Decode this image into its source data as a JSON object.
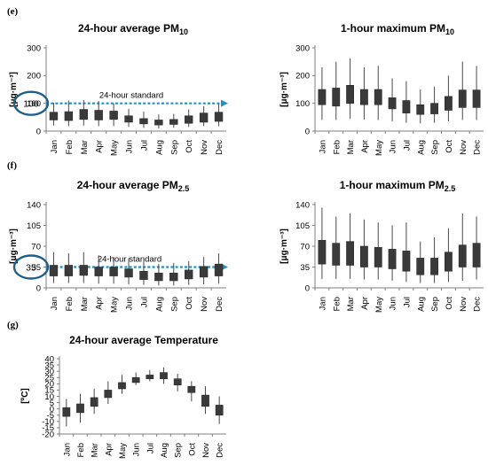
{
  "colors": {
    "box": "#3a3a3a",
    "whisker": "#4a4a4a",
    "axis": "#7f7f7f",
    "standard": "#1e90c8",
    "ellipse": "#1f5f8c"
  },
  "panels": {
    "e": "(e)",
    "f": "(f)",
    "g": "(g)"
  },
  "chart_data": [
    {
      "type": "boxplot",
      "panel": "e",
      "title": "24-hour average PM",
      "title_sub": "10",
      "ylabel": "[μg·m⁻³]",
      "ylim": [
        0,
        300
      ],
      "yticks": [
        0,
        100,
        200,
        300
      ],
      "categories": [
        "Jan",
        "Feb",
        "Mar",
        "Apr",
        "May",
        "Jun",
        "Jul",
        "Aug",
        "Sep",
        "Oct",
        "Nov",
        "Dec"
      ],
      "boxes": [
        {
          "low": 20,
          "q1": 40,
          "q3": 68,
          "high": 102
        },
        {
          "low": 18,
          "q1": 38,
          "q3": 70,
          "high": 110
        },
        {
          "low": 20,
          "q1": 42,
          "q3": 78,
          "high": 112
        },
        {
          "low": 18,
          "q1": 40,
          "q3": 75,
          "high": 108
        },
        {
          "low": 18,
          "q1": 42,
          "q3": 72,
          "high": 100
        },
        {
          "low": 15,
          "q1": 32,
          "q3": 55,
          "high": 80
        },
        {
          "low": 12,
          "q1": 26,
          "q3": 45,
          "high": 70
        },
        {
          "low": 10,
          "q1": 22,
          "q3": 40,
          "high": 60
        },
        {
          "low": 12,
          "q1": 24,
          "q3": 42,
          "high": 62
        },
        {
          "low": 15,
          "q1": 28,
          "q3": 55,
          "high": 78
        },
        {
          "low": 18,
          "q1": 32,
          "q3": 65,
          "high": 90
        },
        {
          "low": 18,
          "q1": 35,
          "q3": 68,
          "high": 98
        }
      ],
      "standard": {
        "value": 100,
        "label": "24-hour standard",
        "highlight": "100"
      }
    },
    {
      "type": "boxplot",
      "panel": "e",
      "title": "1-hour maximum PM",
      "title_sub": "10",
      "ylabel": "[μg·m⁻³]",
      "ylim": [
        0,
        300
      ],
      "yticks": [
        0,
        100,
        200,
        300
      ],
      "categories": [
        "Jan",
        "Feb",
        "Mar",
        "Apr",
        "May",
        "Jun",
        "Jul",
        "Aug",
        "Sep",
        "Oct",
        "Nov",
        "Dec"
      ],
      "boxes": [
        {
          "low": 40,
          "q1": 95,
          "q3": 150,
          "high": 230
        },
        {
          "low": 40,
          "q1": 90,
          "q3": 155,
          "high": 250
        },
        {
          "low": 45,
          "q1": 100,
          "q3": 165,
          "high": 262
        },
        {
          "low": 42,
          "q1": 95,
          "q3": 150,
          "high": 230
        },
        {
          "low": 40,
          "q1": 95,
          "q3": 150,
          "high": 235
        },
        {
          "low": 35,
          "q1": 80,
          "q3": 120,
          "high": 190
        },
        {
          "low": 30,
          "q1": 65,
          "q3": 110,
          "high": 180
        },
        {
          "low": 28,
          "q1": 60,
          "q3": 95,
          "high": 150
        },
        {
          "low": 30,
          "q1": 62,
          "q3": 100,
          "high": 160
        },
        {
          "low": 35,
          "q1": 75,
          "q3": 125,
          "high": 200
        },
        {
          "low": 40,
          "q1": 85,
          "q3": 148,
          "high": 250
        },
        {
          "low": 40,
          "q1": 85,
          "q3": 148,
          "high": 235
        }
      ]
    },
    {
      "type": "boxplot",
      "panel": "f",
      "title": "24-hour average PM",
      "title_sub": "2.5",
      "ylabel": "[μg·m⁻³]",
      "ylim": [
        0,
        140
      ],
      "yticks": [
        0,
        35,
        70,
        105,
        140
      ],
      "categories": [
        "Jan",
        "Feb",
        "Mar",
        "Apr",
        "May",
        "Jun",
        "Jul",
        "Aug",
        "Sep",
        "Oct",
        "Nov",
        "Dec"
      ],
      "boxes": [
        {
          "low": 8,
          "q1": 20,
          "q3": 38,
          "high": 60
        },
        {
          "low": 8,
          "q1": 20,
          "q3": 38,
          "high": 58
        },
        {
          "low": 8,
          "q1": 21,
          "q3": 38,
          "high": 60
        },
        {
          "low": 7,
          "q1": 20,
          "q3": 35,
          "high": 55
        },
        {
          "low": 7,
          "q1": 20,
          "q3": 35,
          "high": 52
        },
        {
          "low": 6,
          "q1": 18,
          "q3": 32,
          "high": 50
        },
        {
          "low": 5,
          "q1": 14,
          "q3": 28,
          "high": 45
        },
        {
          "low": 4,
          "q1": 12,
          "q3": 25,
          "high": 40
        },
        {
          "low": 4,
          "q1": 12,
          "q3": 25,
          "high": 42
        },
        {
          "low": 5,
          "q1": 15,
          "q3": 30,
          "high": 45
        },
        {
          "low": 6,
          "q1": 18,
          "q3": 36,
          "high": 52
        },
        {
          "low": 7,
          "q1": 20,
          "q3": 40,
          "high": 58
        }
      ],
      "standard": {
        "value": 35,
        "label": "24-hour standard",
        "highlight": "35"
      }
    },
    {
      "type": "boxplot",
      "panel": "f",
      "title": "1-hour maximum PM",
      "title_sub": "2.5",
      "ylabel": "[μg·m⁻³]",
      "ylim": [
        0,
        140
      ],
      "yticks": [
        0,
        35,
        70,
        105,
        140
      ],
      "categories": [
        "Jan",
        "Feb",
        "Mar",
        "Apr",
        "May",
        "Jun",
        "Jul",
        "Aug",
        "Sep",
        "Oct",
        "Nov",
        "Dec"
      ],
      "boxes": [
        {
          "low": 15,
          "q1": 40,
          "q3": 80,
          "high": 135
        },
        {
          "low": 15,
          "q1": 38,
          "q3": 75,
          "high": 120
        },
        {
          "low": 15,
          "q1": 38,
          "q3": 78,
          "high": 125
        },
        {
          "low": 14,
          "q1": 35,
          "q3": 70,
          "high": 115
        },
        {
          "low": 14,
          "q1": 35,
          "q3": 68,
          "high": 110
        },
        {
          "low": 12,
          "q1": 32,
          "q3": 65,
          "high": 105
        },
        {
          "low": 10,
          "q1": 28,
          "q3": 62,
          "high": 110
        },
        {
          "low": 8,
          "q1": 22,
          "q3": 50,
          "high": 78
        },
        {
          "low": 8,
          "q1": 22,
          "q3": 50,
          "high": 85
        },
        {
          "low": 10,
          "q1": 28,
          "q3": 60,
          "high": 100
        },
        {
          "low": 12,
          "q1": 35,
          "q3": 72,
          "high": 125
        },
        {
          "low": 14,
          "q1": 35,
          "q3": 75,
          "high": 120
        }
      ]
    },
    {
      "type": "boxplot",
      "panel": "g",
      "title": "24-hour average Temperature",
      "title_sub": "",
      "ylabel": "[ºC]",
      "ylim": [
        -20,
        40
      ],
      "yticks": [
        -20,
        -15,
        -10,
        -5,
        0,
        5,
        10,
        15,
        20,
        25,
        30,
        35,
        40
      ],
      "categories": [
        "Jan",
        "Feb",
        "Mar",
        "Apr",
        "May",
        "Jun",
        "Jul",
        "Aug",
        "Sep",
        "Oct",
        "Nov",
        "Dec"
      ],
      "boxes": [
        {
          "low": -14,
          "q1": -6,
          "q3": 1,
          "high": 8
        },
        {
          "low": -11,
          "q1": -3,
          "q3": 4,
          "high": 12
        },
        {
          "low": -4,
          "q1": 2,
          "q3": 9,
          "high": 16
        },
        {
          "low": 4,
          "q1": 9,
          "q3": 15,
          "high": 22
        },
        {
          "low": 12,
          "q1": 16,
          "q3": 21,
          "high": 27
        },
        {
          "low": 19,
          "q1": 21,
          "q3": 25,
          "high": 29
        },
        {
          "low": 22,
          "q1": 24,
          "q3": 27,
          "high": 31
        },
        {
          "low": 20,
          "q1": 24,
          "q3": 29,
          "high": 33
        },
        {
          "low": 14,
          "q1": 19,
          "q3": 24,
          "high": 28
        },
        {
          "low": 6,
          "q1": 13,
          "q3": 18,
          "high": 22
        },
        {
          "low": -4,
          "q1": 2,
          "q3": 11,
          "high": 18
        },
        {
          "low": -12,
          "q1": -5,
          "q3": 3,
          "high": 10
        }
      ]
    }
  ]
}
